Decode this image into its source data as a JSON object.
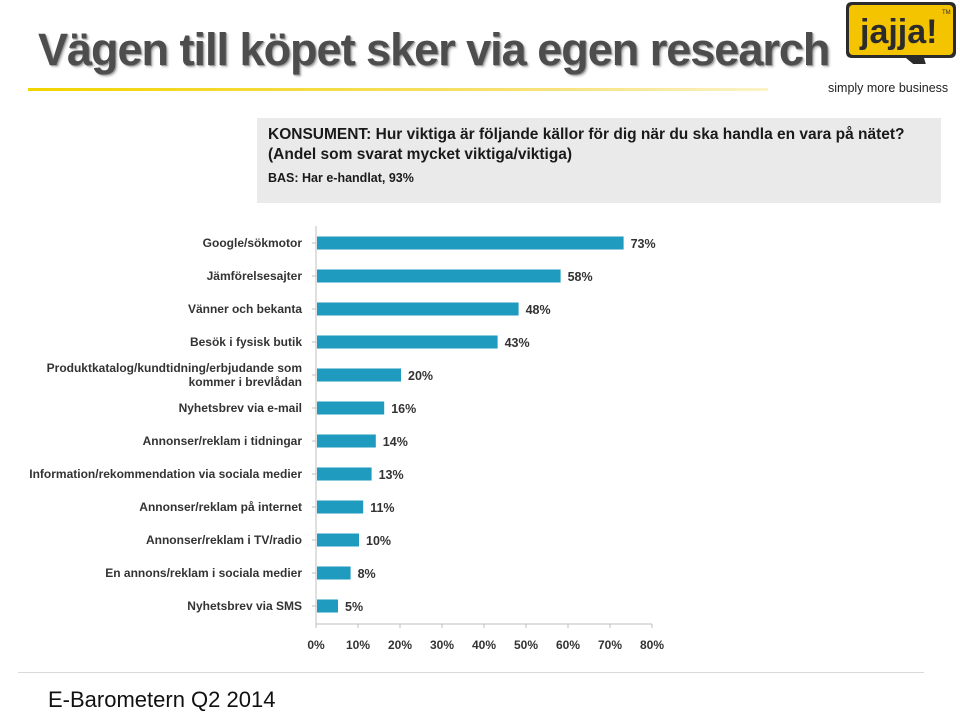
{
  "slide": {
    "title": "Vägen till köpet sker via egen research",
    "footer": "E-Barometern Q2 2014"
  },
  "logo": {
    "text": "jajja!",
    "trademark": "TM",
    "tagline": "simply more business",
    "colors": {
      "yellow": "#f5c400",
      "dark": "#2b2b2b"
    }
  },
  "question": {
    "text": "KONSUMENT: Hur viktiga är följande källor för dig när du ska handla en vara på nätet? (Andel som svarat mycket viktiga/viktiga)",
    "base": "BAS: Har e-handlat, 93%"
  },
  "chart_data": {
    "type": "bar",
    "orientation": "horizontal",
    "categories": [
      "Google/sökmotor",
      "Jämförelsesajter",
      "Vänner och bekanta",
      "Besök i fysisk butik",
      "Produktkatalog/kundtidning/erbjudande som kommer i brevlådan",
      "Nyhetsbrev via e-mail",
      "Annonser/reklam i tidningar",
      "Information/rekommendation via sociala medier",
      "Annonser/reklam på internet",
      "Annonser/reklam i TV/radio",
      "En annons/reklam i sociala medier",
      "Nyhetsbrev via SMS"
    ],
    "values": [
      73,
      58,
      48,
      43,
      20,
      16,
      14,
      13,
      11,
      10,
      8,
      5
    ],
    "value_labels": [
      "73%",
      "58%",
      "48%",
      "43%",
      "20%",
      "16%",
      "14%",
      "13%",
      "11%",
      "10%",
      "8%",
      "5%"
    ],
    "category_lines": [
      [
        "Google/sökmotor"
      ],
      [
        "Jämförelsesajter"
      ],
      [
        "Vänner och bekanta"
      ],
      [
        "Besök i fysisk butik"
      ],
      [
        "Produktkatalog/kundtidning/erbjudande som",
        "kommer i brevlådan"
      ],
      [
        "Nyhetsbrev via e-mail"
      ],
      [
        "Annonser/reklam i tidningar"
      ],
      [
        "Information/rekommendation via sociala medier"
      ],
      [
        "Annonser/reklam på internet"
      ],
      [
        "Annonser/reklam i TV/radio"
      ],
      [
        "En annons/reklam i sociala medier"
      ],
      [
        "Nyhetsbrev via SMS"
      ]
    ],
    "xlim": [
      0,
      80
    ],
    "x_ticks": [
      0,
      10,
      20,
      30,
      40,
      50,
      60,
      70,
      80
    ],
    "x_tick_labels": [
      "0%",
      "10%",
      "20%",
      "30%",
      "40%",
      "50%",
      "60%",
      "70%",
      "80%"
    ],
    "grid": false,
    "legend": "none",
    "bar_color": "#1e9bbf",
    "axis_color": "#bfbfbf"
  }
}
